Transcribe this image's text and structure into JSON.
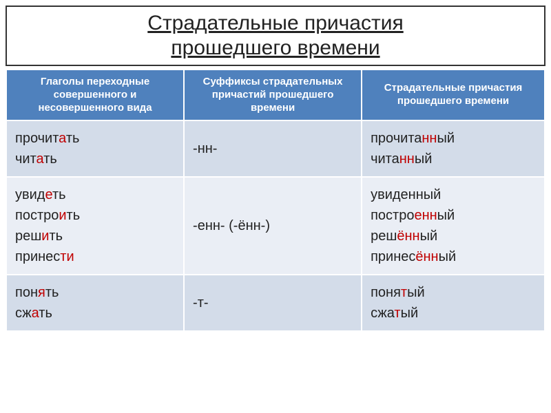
{
  "title": {
    "line1": "Страдательные причастия",
    "line2": "прошедшего времени"
  },
  "headers": {
    "col1": "Глаголы переходные совершенного и несовершенного вида",
    "col2": "Суффиксы страдательных причастий прошедшего времени",
    "col3": "Страдательные причастия прошедшего времени"
  },
  "rows": [
    {
      "verbs": [
        [
          {
            "t": "прочит",
            "hl": false
          },
          {
            "t": "а",
            "hl": true
          },
          {
            "t": "ть",
            "hl": false
          }
        ],
        [
          {
            "t": "чит",
            "hl": false
          },
          {
            "t": "а",
            "hl": true
          },
          {
            "t": "ть",
            "hl": false
          }
        ]
      ],
      "suffix": "-нн-",
      "participles": [
        [
          {
            "t": "прочита",
            "hl": false
          },
          {
            "t": "нн",
            "hl": true
          },
          {
            "t": "ый",
            "hl": false
          }
        ],
        [
          {
            "t": "чита",
            "hl": false
          },
          {
            "t": "нн",
            "hl": true
          },
          {
            "t": "ый",
            "hl": false
          }
        ]
      ]
    },
    {
      "verbs": [
        [
          {
            "t": "увид",
            "hl": false
          },
          {
            "t": "е",
            "hl": true
          },
          {
            "t": "ть",
            "hl": false
          }
        ],
        [
          {
            "t": "постро",
            "hl": false
          },
          {
            "t": "и",
            "hl": true
          },
          {
            "t": "ть",
            "hl": false
          }
        ],
        [
          {
            "t": "реш",
            "hl": false
          },
          {
            "t": "и",
            "hl": true
          },
          {
            "t": "ть",
            "hl": false
          }
        ],
        [
          {
            "t": "принес",
            "hl": false
          },
          {
            "t": "ти",
            "hl": true
          }
        ]
      ],
      "suffix": "-енн- (-ённ-)",
      "participles": [
        [
          {
            "t": "увиденный",
            "hl": false
          }
        ],
        [
          {
            "t": "постро",
            "hl": false
          },
          {
            "t": "енн",
            "hl": true
          },
          {
            "t": "ый",
            "hl": false
          }
        ],
        [
          {
            "t": "реш",
            "hl": false
          },
          {
            "t": "ённ",
            "hl": true
          },
          {
            "t": "ый",
            "hl": false
          }
        ],
        [
          {
            "t": "принес",
            "hl": false
          },
          {
            "t": "ённ",
            "hl": true
          },
          {
            "t": "ый",
            "hl": false
          }
        ]
      ]
    },
    {
      "verbs": [
        [
          {
            "t": "пон",
            "hl": false
          },
          {
            "t": "я",
            "hl": true
          },
          {
            "t": "ть",
            "hl": false
          }
        ],
        [
          {
            "t": "сж",
            "hl": false
          },
          {
            "t": "а",
            "hl": true
          },
          {
            "t": "ть",
            "hl": false
          }
        ]
      ],
      "suffix": "-т-",
      "participles": [
        [
          {
            "t": "поня",
            "hl": false
          },
          {
            "t": "т",
            "hl": true
          },
          {
            "t": "ый",
            "hl": false
          }
        ],
        [
          {
            "t": "сжа",
            "hl": false
          },
          {
            "t": "т",
            "hl": true
          },
          {
            "t": "ый",
            "hl": false
          }
        ]
      ]
    }
  ]
}
